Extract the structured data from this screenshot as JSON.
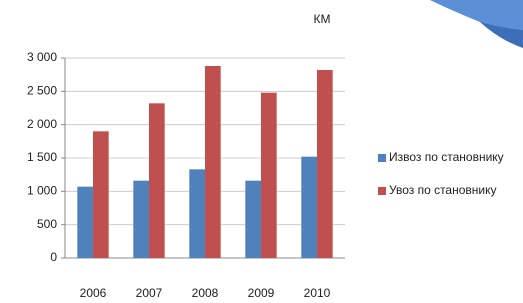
{
  "chart_data": {
    "type": "bar",
    "unit_label": "КМ",
    "categories": [
      "2006",
      "2007",
      "2008",
      "2009",
      "2010"
    ],
    "series": [
      {
        "name": "Извоз по становнику",
        "color": "#4f81bd",
        "values": [
          1070,
          1160,
          1330,
          1160,
          1520
        ]
      },
      {
        "name": "Увоз  по становнику",
        "color": "#c0504d",
        "values": [
          1900,
          2320,
          2880,
          2480,
          2820
        ]
      }
    ],
    "ylim": [
      0,
      3000
    ],
    "yticks": [
      0,
      500,
      {
        "value": 1000,
        "label": "1 000"
      },
      {
        "value": 1500,
        "label": "1 500"
      },
      {
        "value": 2000,
        "label": "2 000"
      },
      {
        "value": 2500,
        "label": "2 500"
      },
      {
        "value": 3000,
        "label": "3 000"
      }
    ],
    "grid": true,
    "legend": "right"
  }
}
